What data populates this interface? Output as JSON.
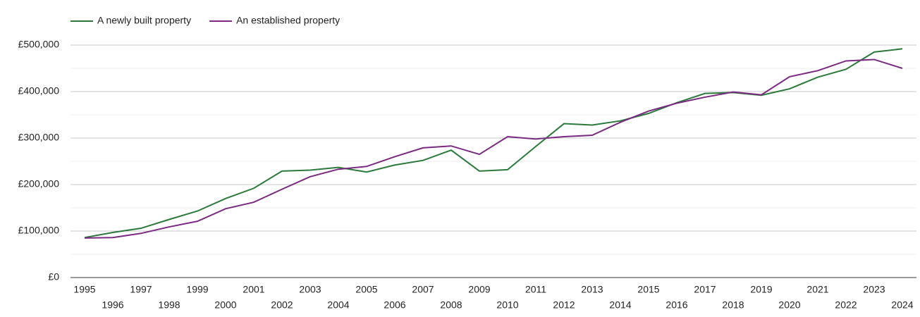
{
  "chart_data": {
    "type": "line",
    "x": [
      1995,
      1996,
      1997,
      1998,
      1999,
      2000,
      2001,
      2002,
      2003,
      2004,
      2005,
      2006,
      2007,
      2008,
      2009,
      2010,
      2011,
      2012,
      2013,
      2014,
      2015,
      2016,
      2017,
      2018,
      2019,
      2020,
      2021,
      2022,
      2023,
      2024
    ],
    "xlim": [
      1994.5,
      2024.5
    ],
    "series": [
      {
        "name": "A newly built property",
        "color": "#2b7a3b",
        "values": [
          86000,
          97000,
          106000,
          125000,
          143000,
          170000,
          192000,
          229000,
          231000,
          237000,
          227000,
          242000,
          252000,
          274000,
          229000,
          232000,
          282000,
          331000,
          328000,
          337000,
          353000,
          376000,
          396000,
          398000,
          392000,
          406000,
          431000,
          448000,
          485000,
          492000
        ]
      },
      {
        "name": "An established property",
        "color": "#7a2a80",
        "values": [
          85000,
          86000,
          95000,
          109000,
          121000,
          148000,
          162000,
          190000,
          217000,
          233000,
          239000,
          260000,
          279000,
          283000,
          265000,
          303000,
          298000,
          303000,
          306000,
          334000,
          358000,
          375000,
          388000,
          399000,
          393000,
          432000,
          445000,
          466000,
          469000,
          450000
        ]
      }
    ],
    "ylim": [
      0,
      500000
    ],
    "yticks": [
      {
        "value": 0,
        "label": "£0"
      },
      {
        "value": 100000,
        "label": "£100,000"
      },
      {
        "value": 200000,
        "label": "£200,000"
      },
      {
        "value": 300000,
        "label": "£300,000"
      },
      {
        "value": 400000,
        "label": "£400,000"
      },
      {
        "value": 500000,
        "label": "£500,000"
      }
    ],
    "minor_yticks": [
      50000,
      150000,
      250000,
      350000,
      450000
    ],
    "grid": true,
    "legend": "top-left"
  }
}
